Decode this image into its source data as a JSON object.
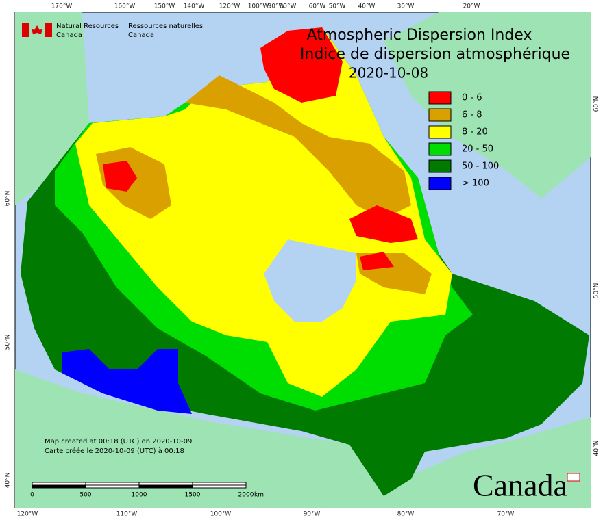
{
  "header": {
    "ministry_en": "Natural Resources",
    "country_en": "Canada",
    "ministry_fr": "Ressources naturelles",
    "country_fr": "Canada"
  },
  "title": {
    "en": "Atmospheric Dispersion Index",
    "fr": "Indice de dispersion atmosphérique",
    "date": "2020-10-08"
  },
  "legend": [
    {
      "label": "0 - 6",
      "color": "#ff0000"
    },
    {
      "label": "6 - 8",
      "color": "#d9a000"
    },
    {
      "label": "8 - 20",
      "color": "#ffff00"
    },
    {
      "label": "20 - 50",
      "color": "#00dd00"
    },
    {
      "label": "50 - 100",
      "color": "#007a00"
    },
    {
      "label": "> 100",
      "color": "#0000ff"
    }
  ],
  "top_labels": [
    "170°W",
    "160°W",
    "150°W",
    "140°W",
    "120°W",
    "100°W",
    "90°W",
    "80°W",
    "60°W",
    "50°W",
    "40°W",
    "30°W",
    "20°W"
  ],
  "bottom_labels": [
    "120°W",
    "110°W",
    "100°W",
    "90°W",
    "80°W",
    "70°W"
  ],
  "left_labels": [
    "60°N",
    "50°N",
    "40°N"
  ],
  "right_labels": [
    "60°N",
    "50°N",
    "40°N"
  ],
  "notes": [
    "Map created at 00:18 (UTC) on 2020-10-09",
    "Carte créée le 2020-10-09 (UTC) à 00:18"
  ],
  "scale": {
    "ticks": [
      "0",
      "500",
      "1000",
      "1500",
      "2000"
    ],
    "unit": "km"
  },
  "wordmark": "Canada"
}
